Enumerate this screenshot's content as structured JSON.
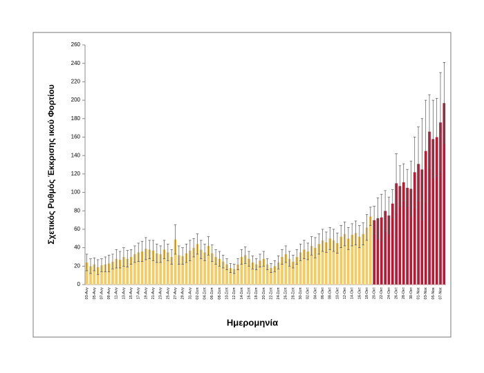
{
  "chart_data": {
    "type": "bar",
    "ylabel": "Σχετικός Ρυθμός Έκκρισης ικού Φορτίου",
    "xlabel": "Ημερομηνία",
    "categories": [
      "03-Αυγ",
      null,
      "05-Αυγ",
      null,
      "07-Αυγ",
      null,
      "09-Αυγ",
      null,
      "11-Αυγ",
      null,
      "13-Αυγ",
      null,
      "15-Αυγ",
      null,
      "17-Αυγ",
      null,
      "19-Αυγ",
      null,
      "21-Αυγ",
      null,
      "23-Αυγ",
      null,
      "25-Αυγ",
      null,
      "27-Αυγ",
      null,
      "29-Αυγ",
      null,
      "31-Αυγ",
      null,
      "02-Σεπ",
      null,
      "04-Σεπ",
      null,
      "06-Σεπ",
      null,
      "08-Σεπ",
      null,
      "10-Σεπ",
      null,
      "12-Σεπ",
      null,
      "14-Σεπ",
      null,
      "16-Σεπ",
      null,
      "18-Σεπ",
      null,
      "20-Σεπ",
      null,
      "22-Σεπ",
      null,
      "24-Σεπ",
      null,
      "26-Σεπ",
      null,
      "28-Σεπ",
      null,
      "30-Σεπ",
      null,
      "02-Οκτ",
      null,
      "04-Οκτ",
      null,
      "06-Οκτ",
      null,
      "08-Οκτ",
      null,
      "10-Οκτ",
      null,
      "12-Οκτ",
      null,
      "14-Οκτ",
      null,
      "16-Οκτ",
      null,
      "18-Οκτ",
      null,
      "20-Οκτ",
      null,
      "22-Οκτ",
      null,
      "24-Οκτ",
      null,
      "26-Οκτ",
      null,
      "28-Οκτ",
      null,
      "30-Οκτ",
      null,
      "01-Νοε",
      null,
      "03-Νοε",
      null,
      "05-Νοε",
      null,
      "07-Νοε",
      null
    ],
    "series": [
      {
        "color": "#f4ca62",
        "values": [
          24,
          20,
          22,
          19,
          21,
          22,
          23,
          25,
          28,
          27,
          30,
          28,
          30,
          33,
          35,
          36,
          39,
          38,
          37,
          34,
          33,
          38,
          35,
          30,
          49,
          32,
          31,
          34,
          37,
          40,
          44,
          38,
          35,
          42,
          34,
          30,
          28,
          25,
          22,
          18,
          17,
          22,
          30,
          32,
          28,
          24,
          22,
          26,
          28,
          22,
          18,
          20,
          24,
          30,
          33,
          28,
          25,
          30,
          35,
          38,
          36,
          42,
          40,
          44,
          48,
          46,
          50,
          48,
          45,
          52,
          55,
          50,
          54,
          56,
          52,
          55,
          62,
          74,
          null,
          null,
          null,
          null,
          null,
          null,
          null,
          null,
          null,
          null,
          null,
          null,
          null,
          null,
          null,
          null,
          null,
          null,
          null,
          null
        ],
        "errors": [
          9,
          8,
          7,
          8,
          7,
          8,
          9,
          8,
          10,
          9,
          10,
          9,
          8,
          9,
          10,
          11,
          12,
          10,
          11,
          10,
          9,
          10,
          9,
          8,
          16,
          10,
          9,
          10,
          11,
          10,
          11,
          10,
          9,
          10,
          9,
          8,
          8,
          7,
          6,
          5,
          5,
          6,
          8,
          9,
          8,
          7,
          6,
          7,
          8,
          6,
          5,
          6,
          7,
          8,
          9,
          8,
          7,
          8,
          9,
          10,
          9,
          10,
          11,
          11,
          12,
          11,
          12,
          12,
          11,
          12,
          13,
          12,
          12,
          13,
          12,
          12,
          14,
          10,
          null,
          null,
          null,
          null,
          null,
          null,
          null,
          null,
          null,
          null,
          null,
          null,
          null,
          null,
          null,
          null,
          null,
          null,
          null,
          null
        ]
      },
      {
        "color": "#b51a35",
        "values": [
          null,
          null,
          null,
          null,
          null,
          null,
          null,
          null,
          null,
          null,
          null,
          null,
          null,
          null,
          null,
          null,
          null,
          null,
          null,
          null,
          null,
          null,
          null,
          null,
          null,
          null,
          null,
          null,
          null,
          null,
          null,
          null,
          null,
          null,
          null,
          null,
          null,
          null,
          null,
          null,
          null,
          null,
          null,
          null,
          null,
          null,
          null,
          null,
          null,
          null,
          null,
          null,
          null,
          null,
          null,
          null,
          null,
          null,
          null,
          null,
          null,
          null,
          null,
          null,
          null,
          null,
          null,
          null,
          null,
          null,
          null,
          null,
          null,
          null,
          null,
          null,
          null,
          null,
          70,
          72,
          73,
          80,
          75,
          88,
          110,
          107,
          111,
          105,
          104,
          122,
          131,
          125,
          145,
          166,
          158,
          160,
          176,
          197
        ],
        "errors": [
          null,
          null,
          null,
          null,
          null,
          null,
          null,
          null,
          null,
          null,
          null,
          null,
          null,
          null,
          null,
          null,
          null,
          null,
          null,
          null,
          null,
          null,
          null,
          null,
          null,
          null,
          null,
          null,
          null,
          null,
          null,
          null,
          null,
          null,
          null,
          null,
          null,
          null,
          null,
          null,
          null,
          null,
          null,
          null,
          null,
          null,
          null,
          null,
          null,
          null,
          null,
          null,
          null,
          null,
          null,
          null,
          null,
          null,
          null,
          null,
          null,
          null,
          null,
          null,
          null,
          null,
          null,
          null,
          null,
          null,
          null,
          null,
          null,
          null,
          null,
          null,
          null,
          null,
          15,
          22,
          25,
          22,
          20,
          15,
          32,
          22,
          20,
          20,
          30,
          38,
          40,
          55,
          55,
          40,
          42,
          42,
          54,
          44
        ]
      }
    ],
    "ylim": [
      0,
      260
    ],
    "yticks": [
      0,
      20,
      40,
      60,
      80,
      100,
      120,
      140,
      160,
      180,
      200,
      220,
      240,
      260
    ]
  }
}
